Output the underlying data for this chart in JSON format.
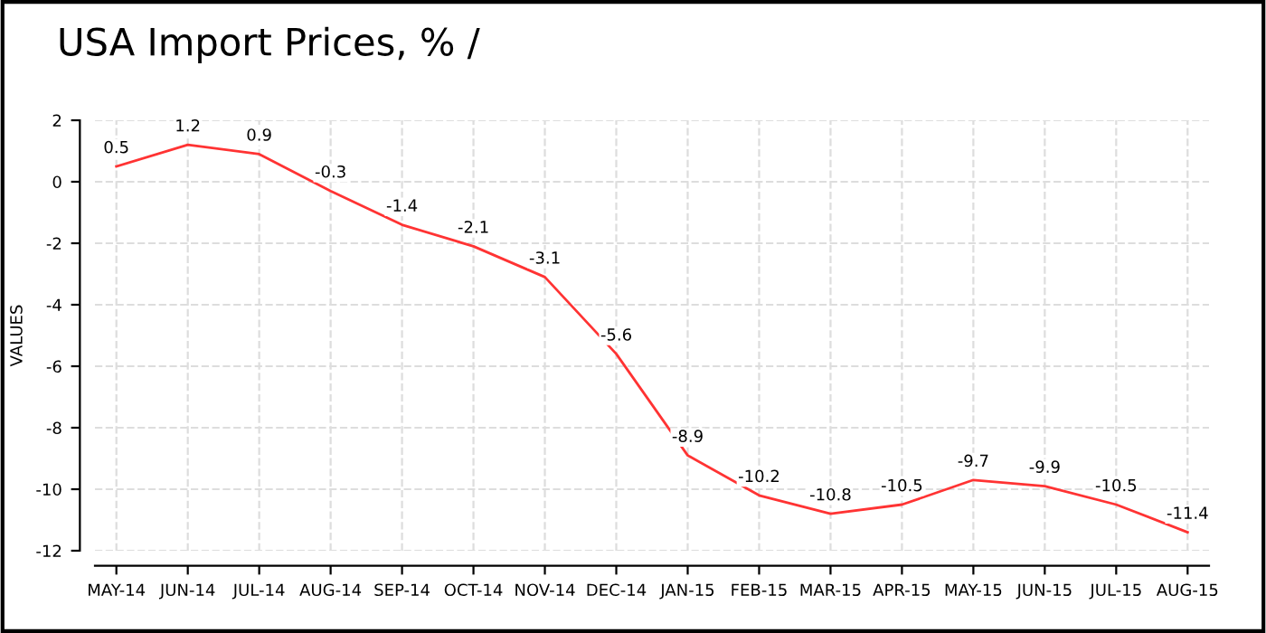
{
  "chart_data": {
    "type": "line",
    "title": "USA Import Prices, % /",
    "ylabel": "VALUES",
    "categories": [
      "MAY-14",
      "JUN-14",
      "JUL-14",
      "AUG-14",
      "SEP-14",
      "OCT-14",
      "NOV-14",
      "DEC-14",
      "JAN-15",
      "FEB-15",
      "MAR-15",
      "APR-15",
      "MAY-15",
      "JUN-15",
      "JUL-15",
      "AUG-15"
    ],
    "series": [
      {
        "color": "#ff3333",
        "values": [
          0.5,
          1.2,
          0.9,
          -0.3,
          -1.4,
          -2.1,
          -3.1,
          -5.6,
          -8.9,
          -10.2,
          -10.8,
          -10.5,
          -9.7,
          -9.9,
          -10.5,
          -11.4
        ]
      }
    ],
    "ylim": [
      -12,
      2
    ],
    "yticks": [
      -12,
      -10,
      -8,
      -6,
      -4,
      -2,
      0,
      2
    ],
    "grid": true,
    "data_labels": true,
    "marker": "none",
    "line_style": "solid"
  }
}
